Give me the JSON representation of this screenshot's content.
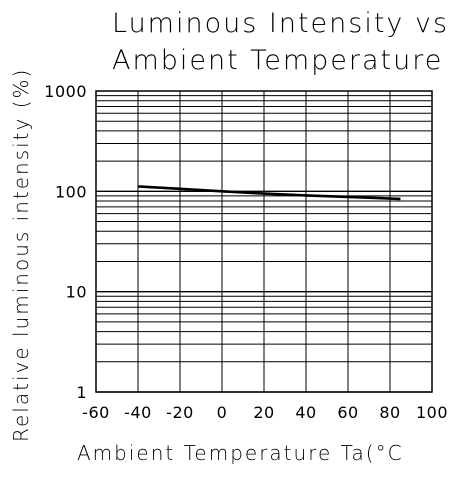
{
  "chart_data": {
    "type": "line",
    "title": "Luminous Intensity vs. Ambient Temperature",
    "title_lines": [
      "Luminous Intensity vs.",
      "Ambient Temperature"
    ],
    "xlabel": "Ambient Temperature Ta(°C",
    "ylabel": "Relative luminous intensity (%)",
    "xlim": [
      -60,
      100
    ],
    "ylim": [
      1,
      1000
    ],
    "y_scale": "log",
    "grid": true,
    "x_ticks": [
      -60,
      -40,
      -20,
      0,
      20,
      40,
      60,
      80,
      100
    ],
    "x_tick_labels": [
      "-60",
      "-40",
      "-20",
      "0",
      "20",
      "40",
      "60",
      "80",
      "100"
    ],
    "y_ticks": [
      1,
      10,
      100,
      1000
    ],
    "y_tick_labels": [
      "1",
      "10",
      "100",
      "1000"
    ],
    "series": [
      {
        "x": [
          -40,
          -20,
          0,
          20,
          40,
          60,
          85
        ],
        "y": [
          112,
          106,
          100,
          95,
          91,
          88,
          84
        ]
      }
    ]
  }
}
